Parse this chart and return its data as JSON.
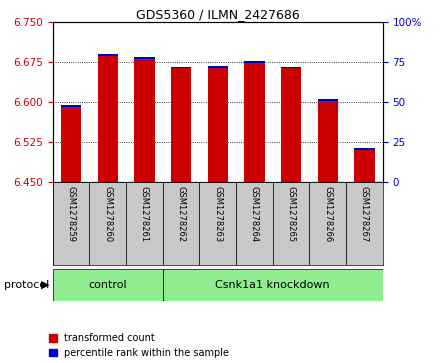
{
  "title": "GDS5360 / ILMN_2427686",
  "samples": [
    "GSM1278259",
    "GSM1278260",
    "GSM1278261",
    "GSM1278262",
    "GSM1278263",
    "GSM1278264",
    "GSM1278265",
    "GSM1278266",
    "GSM1278267"
  ],
  "red_values": [
    6.59,
    6.686,
    6.68,
    6.663,
    6.664,
    6.673,
    6.663,
    6.602,
    6.51
  ],
  "blue_values": [
    6.593,
    6.689,
    6.683,
    6.666,
    6.667,
    6.676,
    6.666,
    6.605,
    6.513
  ],
  "ylim_left": [
    6.45,
    6.75
  ],
  "ylim_right": [
    0,
    100
  ],
  "yticks_left": [
    6.45,
    6.525,
    6.6,
    6.675,
    6.75
  ],
  "yticks_right": [
    0,
    25,
    50,
    75,
    100
  ],
  "bar_bottom": 6.45,
  "red_color": "#CC0000",
  "blue_color": "#0000CC",
  "bar_width": 0.55,
  "control_label": "control",
  "knockdown_label": "Csnk1a1 knockdown",
  "protocol_label": "protocol",
  "legend_red": "transformed count",
  "legend_blue": "percentile rank within the sample",
  "group_box_color": "#90EE90",
  "tick_area_color": "#C8C8C8",
  "n_control": 3,
  "title_fontsize": 9,
  "tick_fontsize": 7.5,
  "sample_fontsize": 6
}
